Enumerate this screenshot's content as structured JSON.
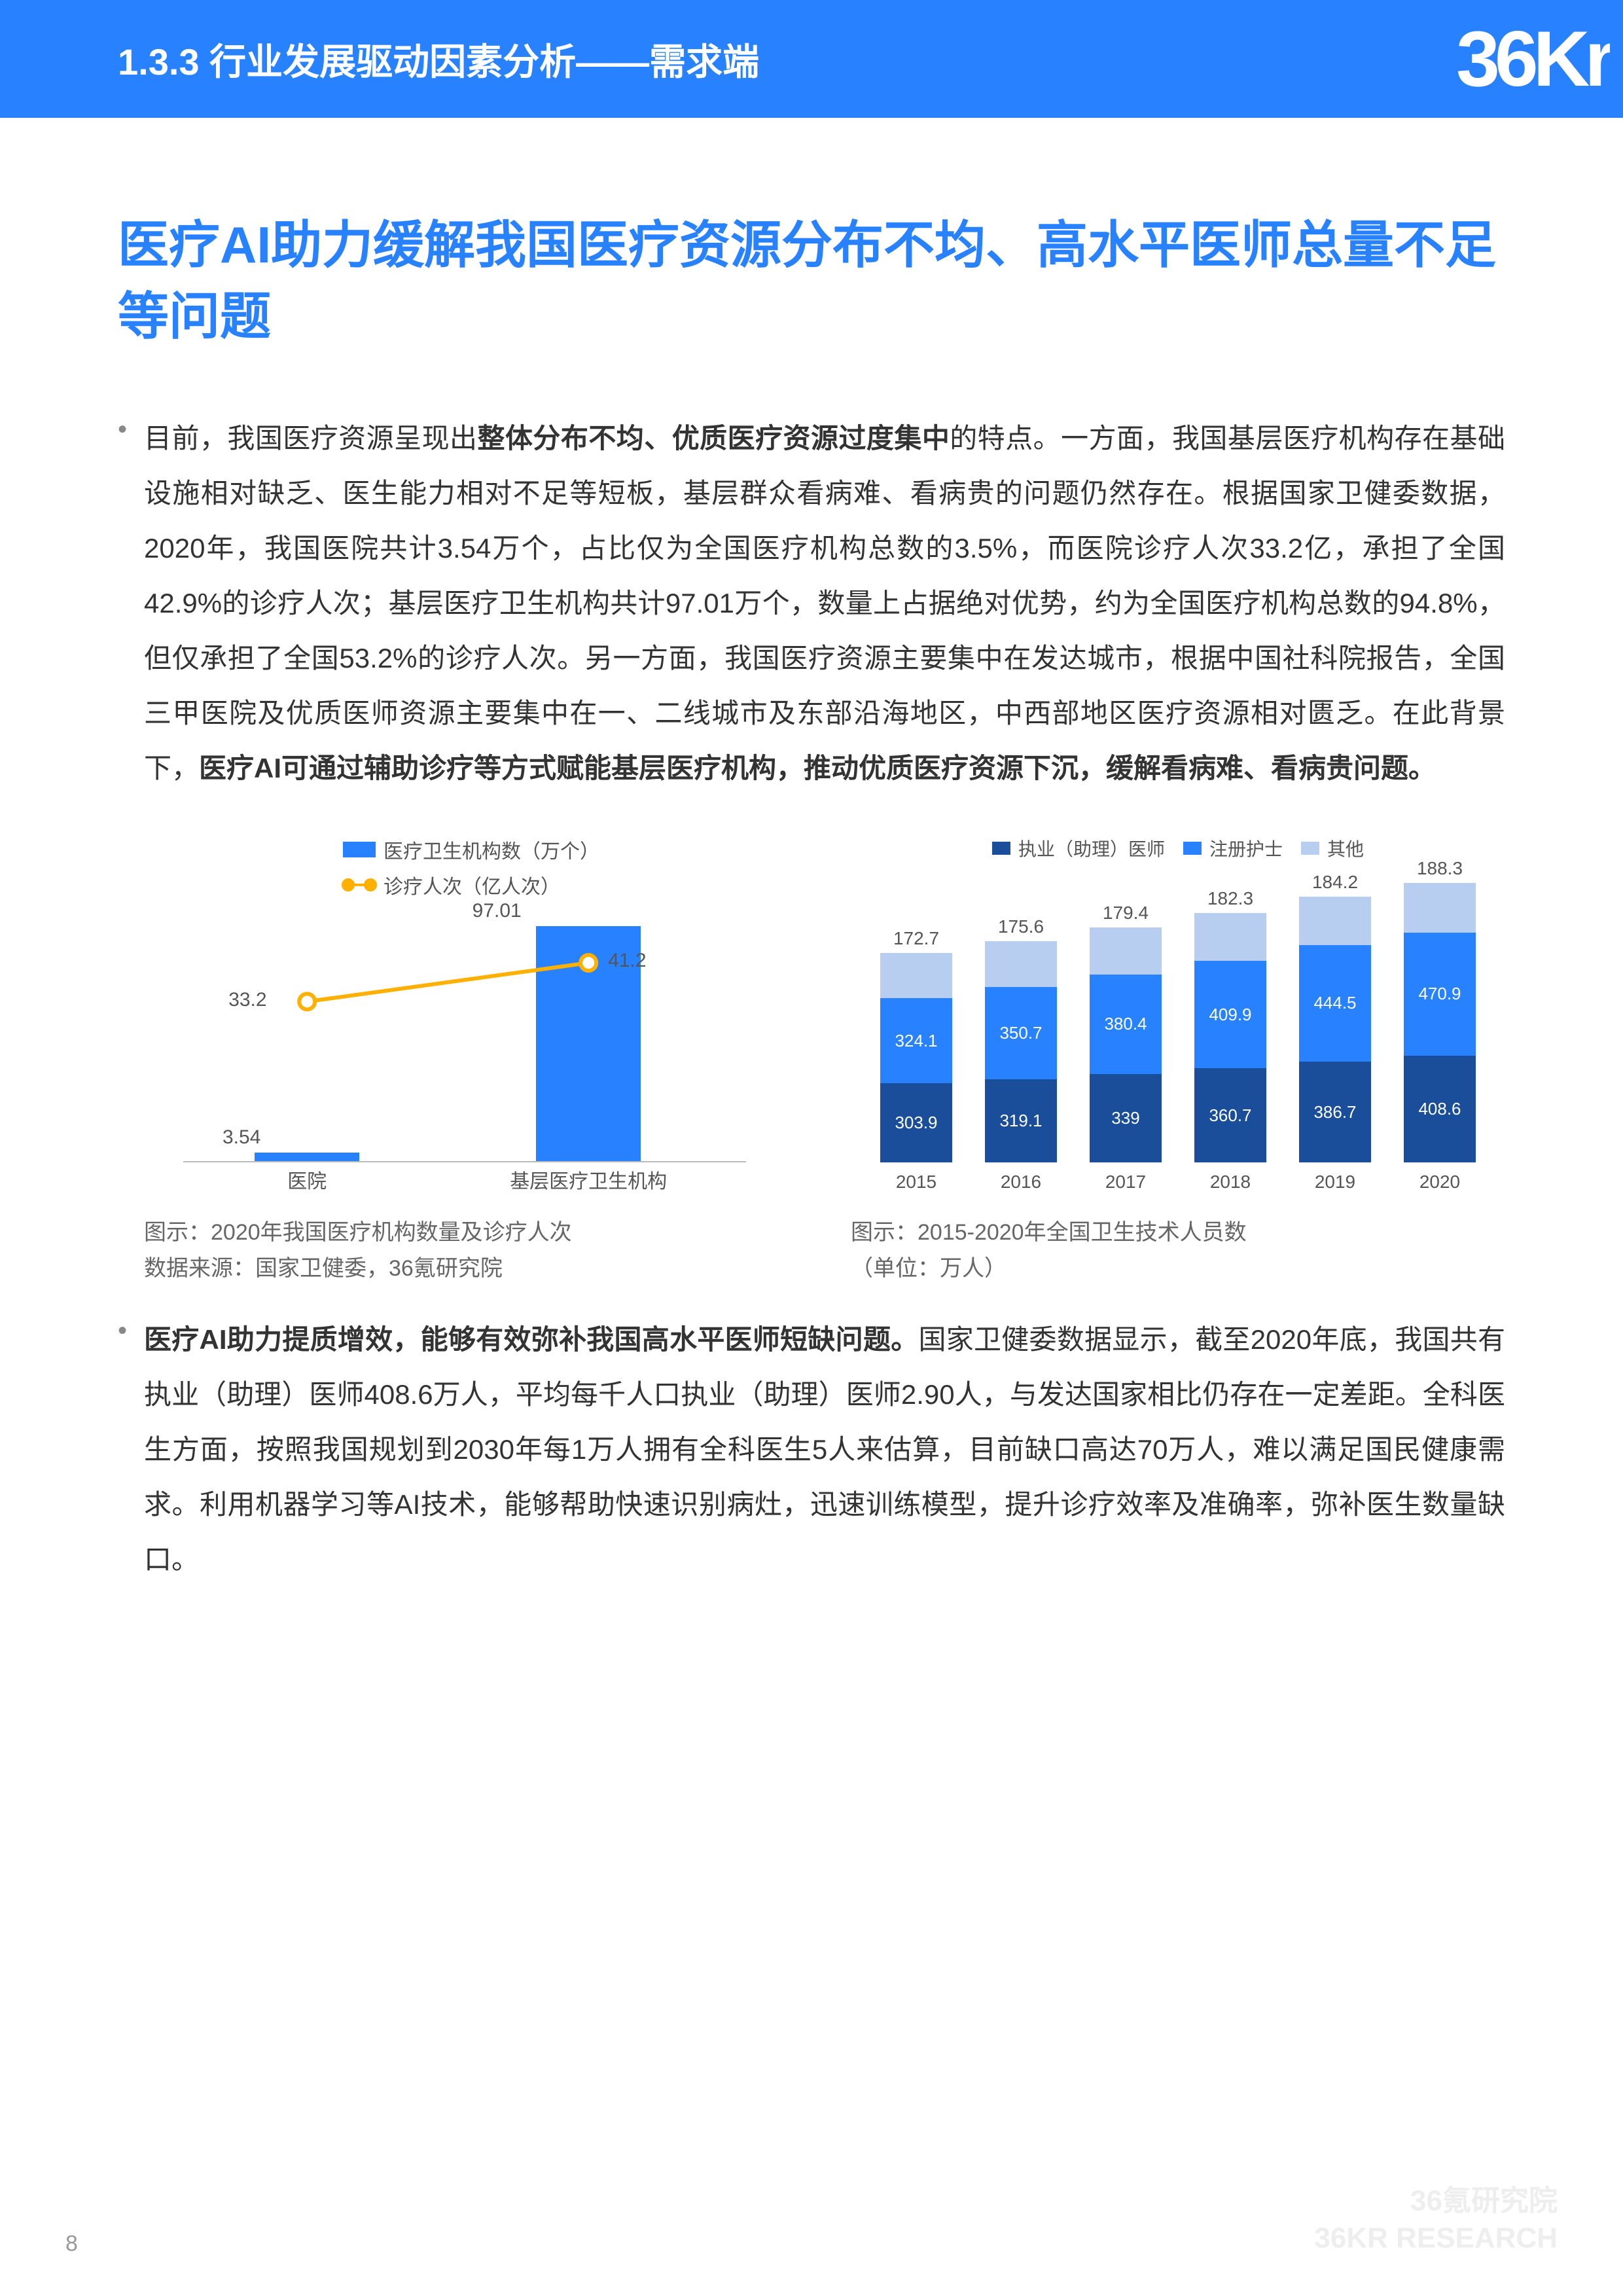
{
  "header": {
    "section_title": "1.3.3 行业发展驱动因素分析——需求端",
    "logo_text": "36Kr",
    "bg_color": "#2882ff"
  },
  "main_heading": "医疗AI助力缓解我国医疗资源分布不均、高水平医师总量不足等问题",
  "paragraphs": {
    "p1_html": "目前，我国医疗资源呈现出<b>整体分布不均、优质医疗资源过度集中</b>的特点。一方面，我国基层医疗机构存在基础设施相对缺乏、医生能力相对不足等短板，基层群众看病难、看病贵的问题仍然存在。根据国家卫健委数据，2020年，我国医院共计3.54万个，占比仅为全国医疗机构总数的3.5%，而医院诊疗人次33.2亿，承担了全国42.9%的诊疗人次；基层医疗卫生机构共计97.01万个，数量上占据绝对优势，约为全国医疗机构总数的94.8%，但仅承担了全国53.2%的诊疗人次。另一方面，我国医疗资源主要集中在发达城市，根据中国社科院报告，全国三甲医院及优质医师资源主要集中在一、二线城市及东部沿海地区，中西部地区医疗资源相对匮乏。在此背景下，<b>医疗AI可通过辅助诊疗等方式赋能基层医疗机构，推动优质医疗资源下沉，缓解看病难、看病贵问题。</b>",
    "p2_html": "<b>医疗AI助力提质增效，能够有效弥补我国高水平医师短缺问题。</b>国家卫健委数据显示，截至2020年底，我国共有执业（助理）医师408.6万人，平均每千人口执业（助理）医师2.90人，与发达国家相比仍存在一定差距。全科医生方面，按照我国规划到2030年每1万人拥有全科医生5人来估算，目前缺口高达70万人，难以满足国民健康需求。利用机器学习等AI技术，能够帮助快速识别病灶，迅速训练模型，提升诊疗效率及准确率，弥补医生数量缺口。"
  },
  "chart1": {
    "type": "bar+line",
    "legend_bar": "医疗卫生机构数（万个）",
    "legend_line": "诊疗人次（亿人次）",
    "bar_color": "#2882ff",
    "line_color": "#ffb000",
    "categories": [
      "医院",
      "基层医疗卫生机构"
    ],
    "bar_values": [
      3.54,
      97.01
    ],
    "line_values": [
      33.2,
      41.2
    ],
    "bar_max": 100,
    "line_max": 50,
    "caption_l1": "图示：2020年我国医疗机构数量及诊疗人次",
    "caption_l2": "数据来源：国家卫健委，36氪研究院",
    "axis_color": "#bbbbbb",
    "label_fontsize": 30,
    "label_color": "#555555"
  },
  "chart2": {
    "type": "stacked-bar",
    "legend": [
      {
        "label": "执业（助理）医师",
        "color": "#1a4e9a"
      },
      {
        "label": "注册护士",
        "color": "#2882ff"
      },
      {
        "label": "其他",
        "color": "#b8cef0"
      }
    ],
    "years": [
      "2015",
      "2016",
      "2017",
      "2018",
      "2019",
      "2020"
    ],
    "series": {
      "doctor": [
        303.9,
        319.1,
        339,
        360.7,
        386.7,
        408.6
      ],
      "nurse": [
        324.1,
        350.7,
        380.4,
        409.9,
        444.5,
        470.9
      ],
      "other": [
        172.7,
        175.6,
        179.4,
        182.3,
        184.2,
        188.3
      ]
    },
    "ylim_max": 1100,
    "caption_l1": "图示：2015-2020年全国卫生技术人员数",
    "caption_l2": "（单位：万人）",
    "label_fontsize": 28,
    "label_color": "#555555",
    "seg_label_color": "#ffffff"
  },
  "page_number": "8",
  "watermark": {
    "l1": "36氪研究院",
    "l2": "36KR RESEARCH"
  }
}
